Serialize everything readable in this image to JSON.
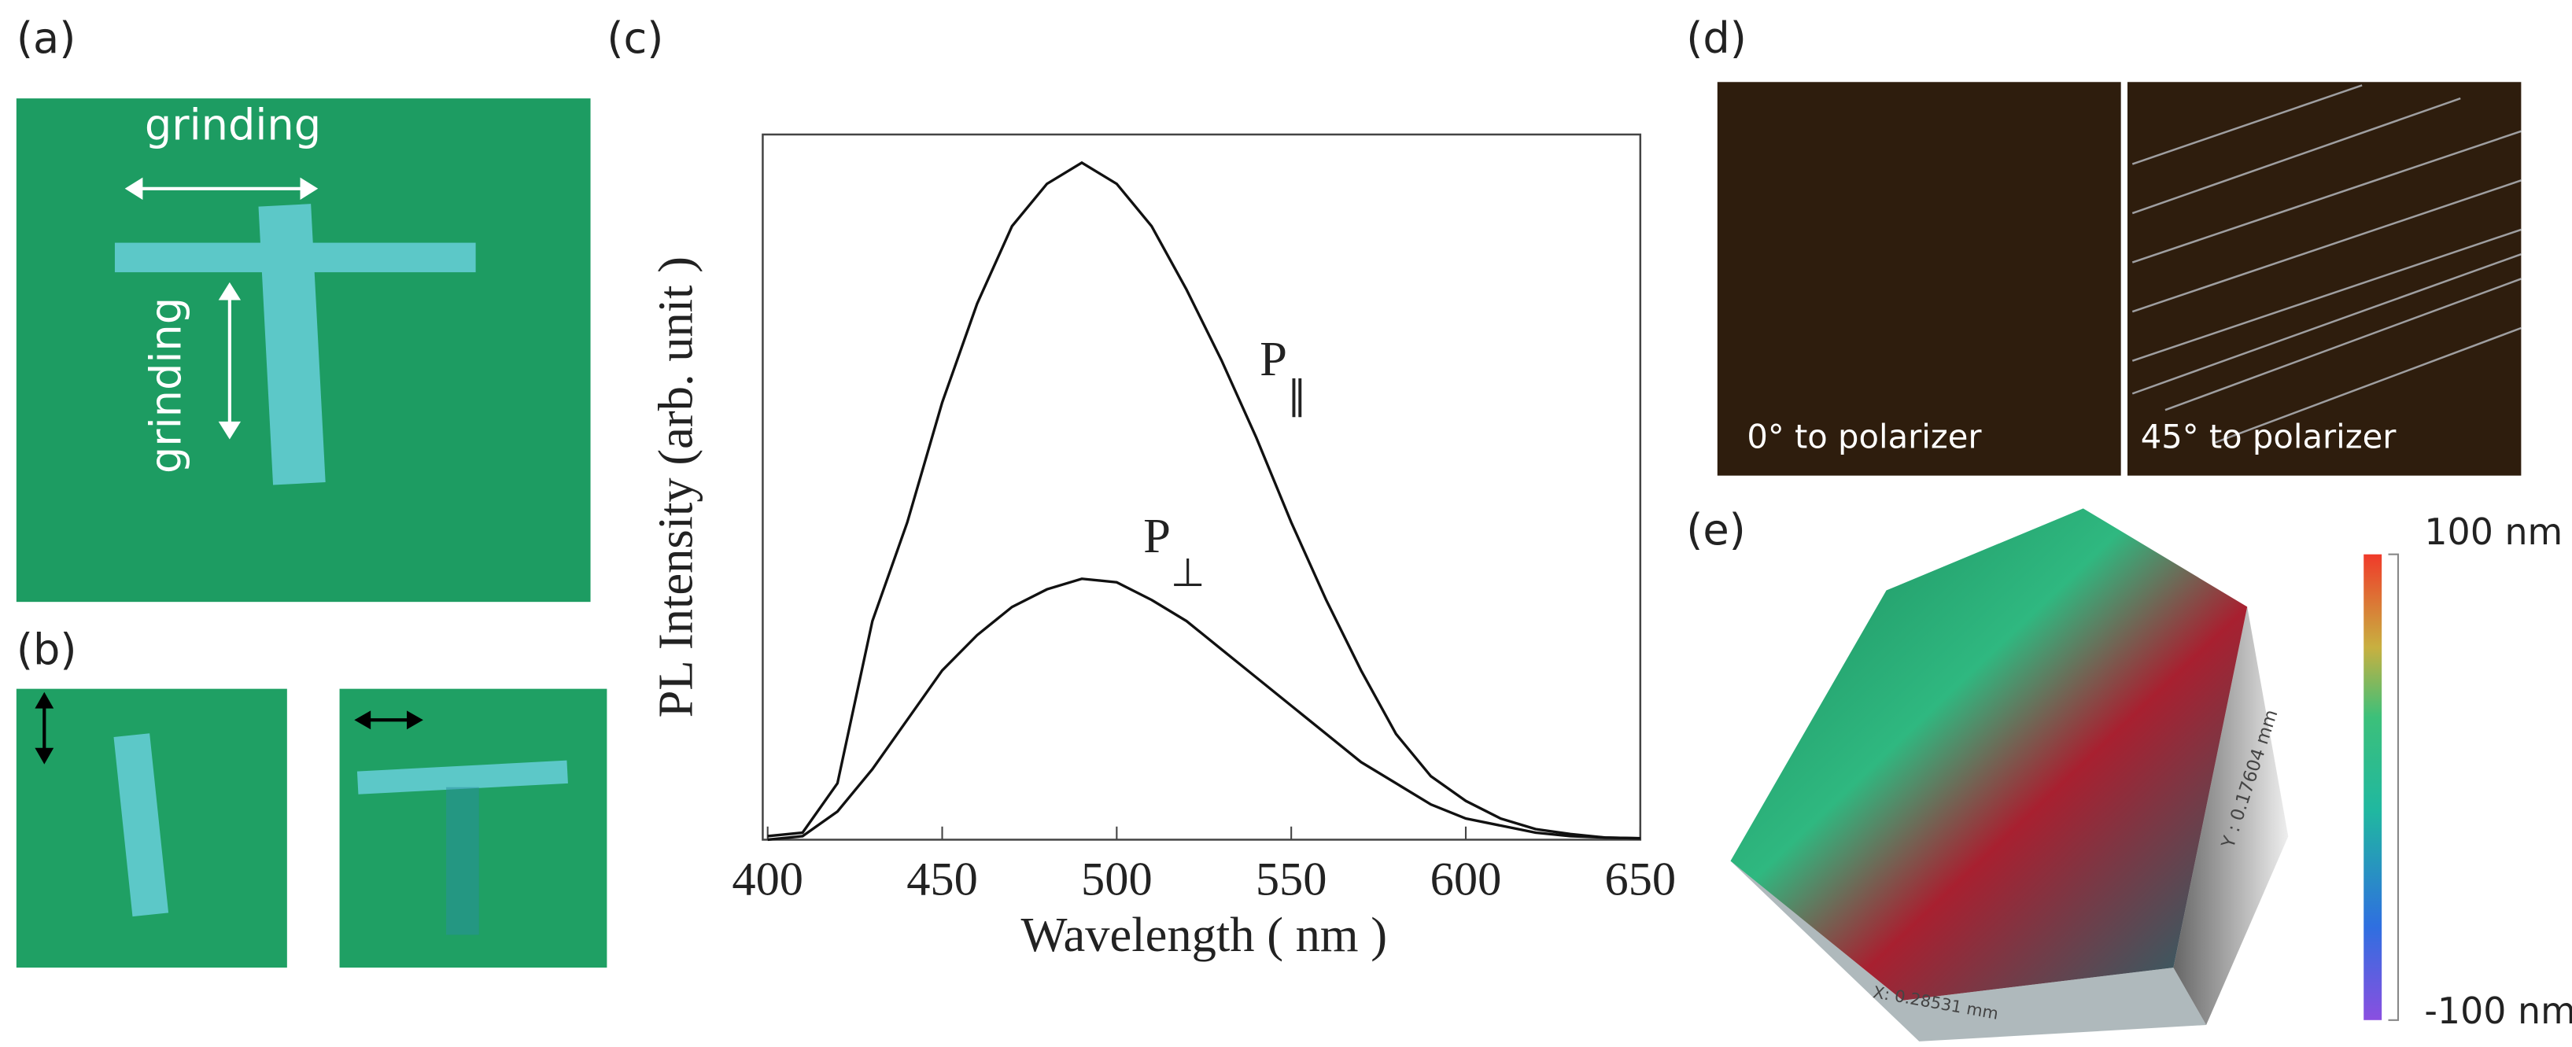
{
  "panels": {
    "a": {
      "label": "(a)",
      "horizontal": "grinding",
      "vertical": "grinding"
    },
    "b": {
      "label": "(b)"
    },
    "c": {
      "label": "(c)"
    },
    "d": {
      "label": "(d)",
      "left": "0°  to polarizer",
      "right": "45°  to polarizer"
    },
    "e": {
      "label": "(e)",
      "y_axis": "Y : 0.17604 mm",
      "x_axis": "X: 0.28531 mm",
      "colorbar_max": "100 nm",
      "colorbar_min": "-100 nm"
    }
  },
  "chart_data": {
    "type": "line",
    "xlabel": "Wavelength ( nm )",
    "ylabel": "PL Intensity (arb. unit )",
    "x": [
      400,
      410,
      420,
      430,
      440,
      450,
      460,
      470,
      480,
      490,
      500,
      510,
      520,
      530,
      540,
      550,
      560,
      570,
      580,
      590,
      600,
      610,
      620,
      630,
      640,
      650
    ],
    "series": [
      {
        "name": "P",
        "subscript": "∥",
        "color": "#111111",
        "values": [
          0.5,
          1,
          8,
          31,
          45,
          62,
          76,
          87,
          93,
          96,
          93,
          87,
          78,
          68,
          57,
          45,
          34,
          24,
          15,
          9,
          5.5,
          3,
          1.5,
          0.8,
          0.3,
          0.2
        ]
      },
      {
        "name": "P",
        "subscript": "⊥",
        "color": "#111111",
        "values": [
          0,
          0.5,
          4,
          10,
          17,
          24,
          29,
          33,
          35.5,
          37,
          36.5,
          34,
          31,
          27,
          23,
          19,
          15,
          11,
          8,
          5,
          3,
          2,
          1,
          0.5,
          0.3,
          0.2
        ]
      }
    ],
    "xlim": [
      400,
      650
    ],
    "ylim": [
      0,
      100
    ],
    "xticks": [
      400,
      450,
      500,
      550,
      600,
      650
    ]
  }
}
